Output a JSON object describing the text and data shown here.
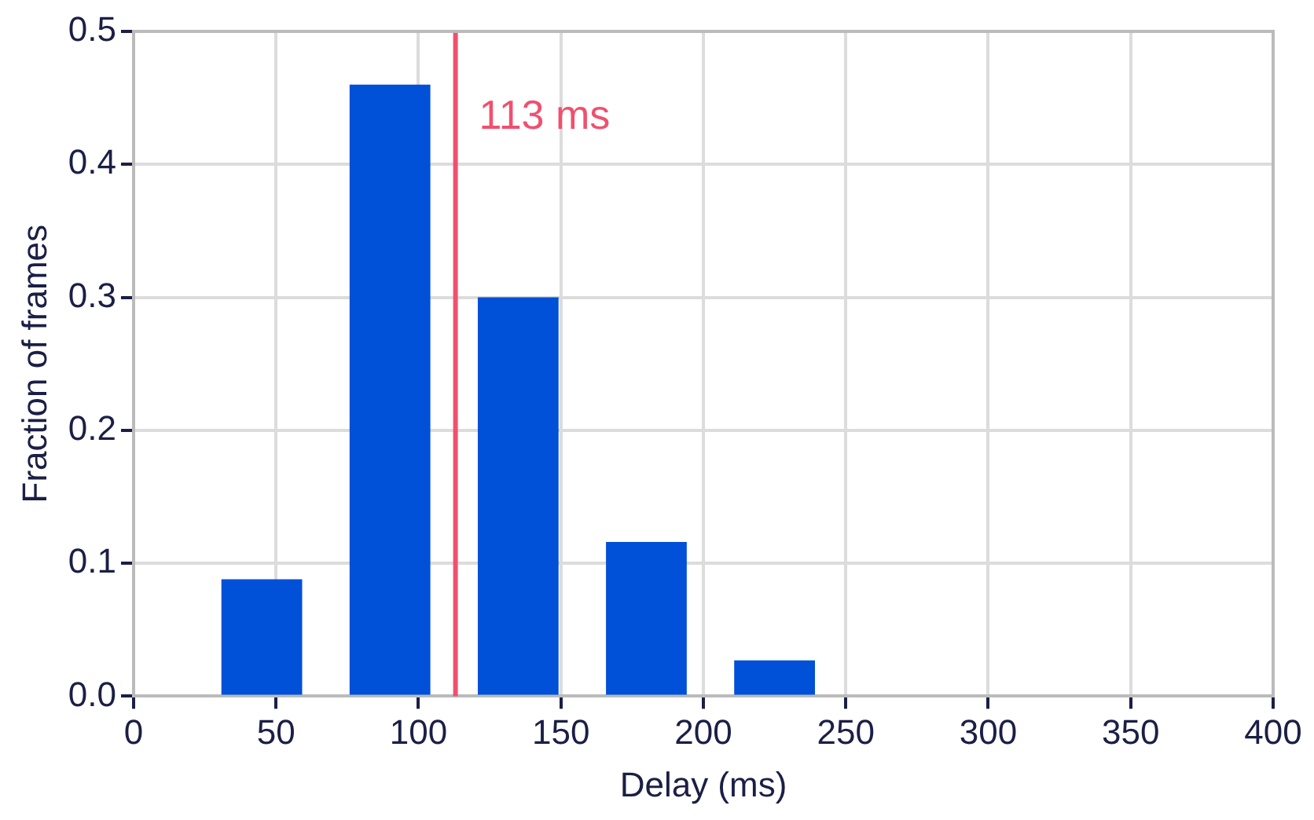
{
  "chart_data": {
    "type": "histogram",
    "xlabel": "Delay (ms)",
    "ylabel": "Fraction of frames",
    "bins": [
      22.5,
      67.5,
      112.5,
      157.5,
      202.5,
      247.5
    ],
    "values": [
      0.088,
      0.46,
      0.3,
      0.116,
      0.027
    ],
    "color": "#0050d8",
    "xlim": [
      0,
      400
    ],
    "xticks": [
      0,
      50,
      100,
      150,
      200,
      250,
      300,
      350,
      400
    ],
    "ylim": [
      0,
      0.5
    ],
    "yticks": [
      {
        "value": 0,
        "label": "0.0"
      },
      0.1,
      0.2,
      0.3,
      0.4,
      0.5
    ],
    "ref_lines": [
      {
        "axis": "x",
        "value": 113,
        "label": "113 ms",
        "color": "#f0506e"
      }
    ],
    "grid": true,
    "legend": false
  }
}
